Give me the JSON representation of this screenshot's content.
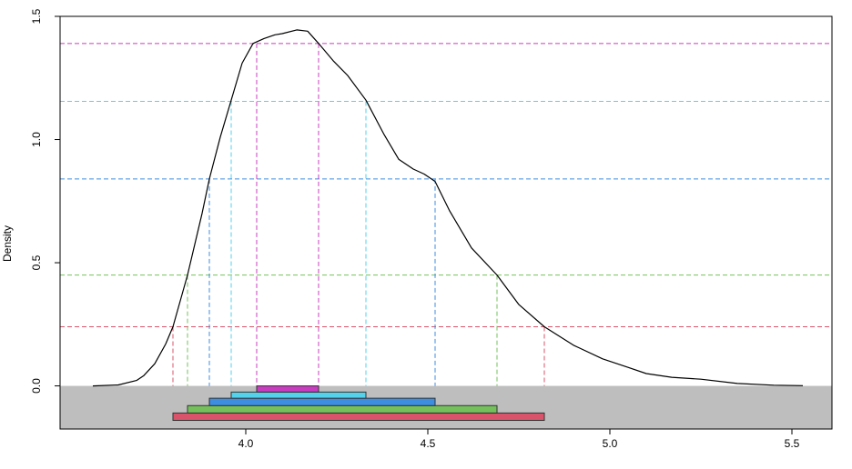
{
  "chart_data": {
    "type": "area",
    "title": "",
    "xlabel": "",
    "ylabel": "Density",
    "xlim": [
      3.49,
      5.61
    ],
    "ylim": [
      -0.175,
      1.5
    ],
    "x_ticks": [
      4.0,
      4.5,
      5.0,
      5.5
    ],
    "x_tick_labels": [
      "4.0",
      "4.5",
      "5.0",
      "5.5"
    ],
    "y_ticks": [
      0.0,
      0.5,
      1.0,
      1.5
    ],
    "y_tick_labels": [
      "0.0",
      "0.5",
      "1.0",
      "1.5"
    ],
    "grid": false,
    "negative_region_color": "#bebebe",
    "density_curve": {
      "color": "#000000",
      "x": [
        3.58,
        3.65,
        3.7,
        3.72,
        3.75,
        3.78,
        3.8,
        3.84,
        3.88,
        3.9,
        3.93,
        3.96,
        3.99,
        4.02,
        4.05,
        4.08,
        4.1,
        4.14,
        4.17,
        4.2,
        4.24,
        4.28,
        4.33,
        4.38,
        4.42,
        4.46,
        4.49,
        4.52,
        4.56,
        4.62,
        4.69,
        4.75,
        4.82,
        4.9,
        4.98,
        5.05,
        5.1,
        5.17,
        5.25,
        5.35,
        5.45,
        5.53
      ],
      "y": [
        0.0,
        0.004,
        0.022,
        0.042,
        0.09,
        0.17,
        0.24,
        0.45,
        0.7,
        0.84,
        1.01,
        1.16,
        1.31,
        1.39,
        1.41,
        1.425,
        1.43,
        1.445,
        1.44,
        1.39,
        1.32,
        1.26,
        1.16,
        1.02,
        0.92,
        0.88,
        0.86,
        0.83,
        0.71,
        0.56,
        0.45,
        0.33,
        0.24,
        0.165,
        0.11,
        0.075,
        0.05,
        0.035,
        0.027,
        0.01,
        0.003,
        0.001
      ]
    },
    "levels": [
      {
        "color": "#d9546a",
        "density": 0.24,
        "x_lo": 3.8,
        "x_hi": 4.82,
        "bar_y": [
          -0.14,
          -0.11
        ]
      },
      {
        "color": "#74c15c",
        "density": 0.45,
        "x_lo": 3.84,
        "x_hi": 4.69,
        "bar_y": [
          -0.11,
          -0.08
        ]
      },
      {
        "color": "#3d8ee0",
        "density": 0.84,
        "x_lo": 3.9,
        "x_hi": 4.52,
        "bar_y": [
          -0.08,
          -0.05
        ]
      },
      {
        "color": "#54d2ec",
        "density": 1.155,
        "x_lo": 3.96,
        "x_hi": 4.33,
        "bar_y": [
          -0.05,
          -0.025
        ]
      },
      {
        "color": "#c83cc0",
        "density": 1.39,
        "x_lo": 4.03,
        "x_hi": 4.2,
        "bar_y": [
          -0.025,
          0.0
        ]
      }
    ]
  }
}
